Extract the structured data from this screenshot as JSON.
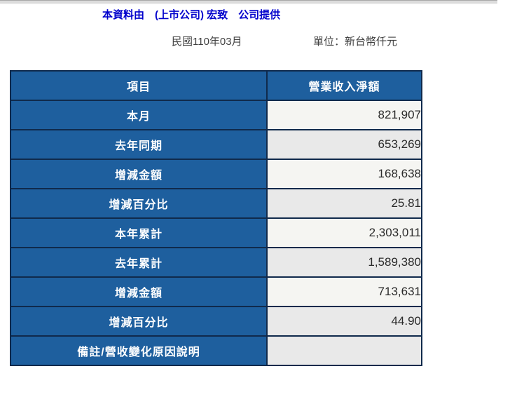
{
  "header": {
    "provider_text": "本資料由　(上市公司) 宏致　公司提供",
    "period": "民國110年03月",
    "unit": "單位：新台幣仟元"
  },
  "table": {
    "columns": [
      "項目",
      "營業收入淨額"
    ],
    "rows": [
      {
        "label": "本月",
        "value": "821,907"
      },
      {
        "label": "去年同期",
        "value": "653,269"
      },
      {
        "label": "增減金額",
        "value": "168,638"
      },
      {
        "label": "增減百分比",
        "value": "25.81"
      },
      {
        "label": "本年累計",
        "value": "2,303,011"
      },
      {
        "label": "去年累計",
        "value": "1,589,380"
      },
      {
        "label": "增減金額",
        "value": "713,631"
      },
      {
        "label": "增減百分比",
        "value": "44.90"
      },
      {
        "label": "備註/營收變化原因說明",
        "value": ""
      }
    ]
  },
  "colors": {
    "header_blue": "#1E5F9E",
    "border_navy": "#102A4C",
    "row_light": "#F5F5F2",
    "row_gray": "#E9E9E9",
    "title_blue": "#0000CC"
  }
}
